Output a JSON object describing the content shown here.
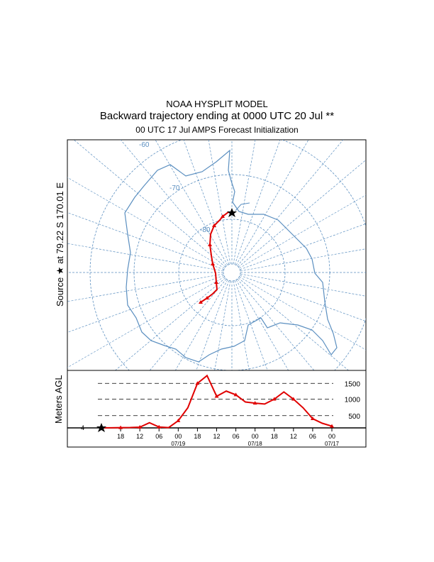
{
  "header": {
    "model": "NOAA HYSPLIT MODEL",
    "title": "Backward trajectory ending at 0000 UTC 20 Jul **",
    "subtitle": "00 UTC 17 Jul    AMPS  Forecast Initialization"
  },
  "map": {
    "source_label": "Source ★ at   79.22 S  170.01 E",
    "latitude_labels": [
      "-60",
      "-70",
      "-80"
    ],
    "colors": {
      "map_lines": "#5b8fc0",
      "trajectory": "#e00000"
    }
  },
  "chart_data": {
    "type": "line",
    "ylabel": "Meters AGL",
    "y_reference_lines": [
      500,
      1000,
      1500
    ],
    "y_tick_labels": [
      "500",
      "1000",
      "1500"
    ],
    "start_height_label": "4",
    "x_tick_labels": [
      "18",
      "12",
      "06",
      "00",
      "18",
      "12",
      "06",
      "00",
      "18",
      "12",
      "06",
      "00"
    ],
    "date_labels": [
      "07/19",
      "07/18",
      "07/17"
    ],
    "x": [
      0,
      3,
      6,
      9,
      12,
      15,
      18,
      21,
      24,
      27,
      30,
      33,
      36,
      39,
      42,
      45,
      48,
      51,
      54,
      57,
      60,
      63,
      66,
      69,
      72
    ],
    "heights": [
      4,
      4,
      8,
      12,
      25,
      180,
      30,
      10,
      250,
      700,
      1550,
      1820,
      1100,
      1280,
      1150,
      900,
      860,
      830,
      1000,
      1250,
      1000,
      700,
      320,
      160,
      60
    ],
    "ylim": [
      0,
      2000
    ],
    "xlim_hours_before_end": [
      0,
      72
    ]
  }
}
